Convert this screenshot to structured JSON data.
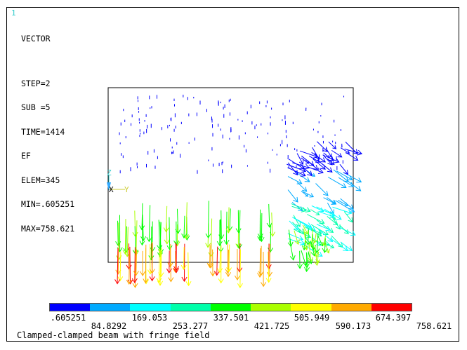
{
  "window": {
    "number": "1"
  },
  "info": {
    "title": "VECTOR",
    "step": "STEP=2",
    "sub": "SUB =5",
    "time": "TIME=1414",
    "item": "EF",
    "elem": "ELEM=345",
    "min": "MIN=.605251",
    "max": "MAX=758.621"
  },
  "triad": {
    "z": "Z",
    "x": "X",
    "y": "Y"
  },
  "legend": {
    "colors": [
      "#0000ff",
      "#00aaff",
      "#00ffff",
      "#00ffaa",
      "#00ff00",
      "#aaff00",
      "#ffff00",
      "#ffaa00",
      "#ff0000"
    ],
    "top_labels": [
      ".605251",
      "169.053",
      "337.501",
      "505.949",
      "674.397"
    ],
    "bottom_labels": [
      "84.8292",
      "253.277",
      "421.725",
      "590.173",
      "758.621"
    ]
  },
  "caption": "Clamped-clamped beam with fringe field"
}
